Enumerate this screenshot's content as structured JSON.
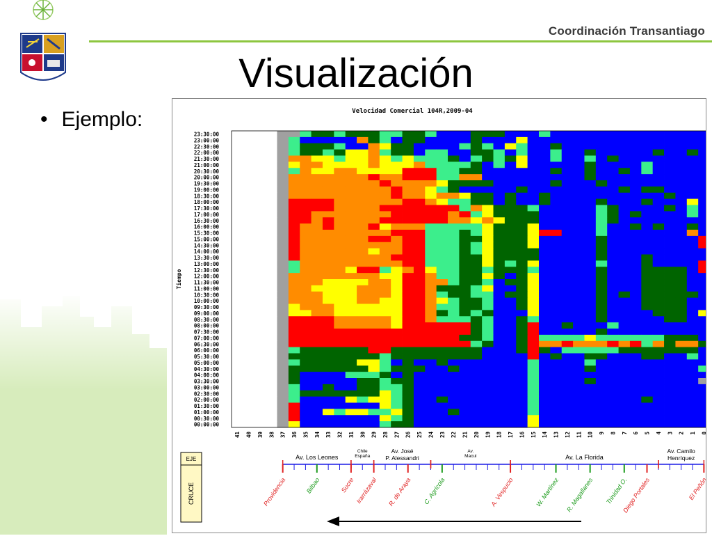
{
  "header": {
    "org_name": "Coordinación Transantiago",
    "accent_color": "#8dc63f"
  },
  "slide": {
    "title": "Visualización",
    "bullet": "Ejemplo:"
  },
  "legend_box": {
    "eje_label": "EJE",
    "cruce_label": "CRUCE"
  },
  "axes_street_segments": [
    {
      "label": "Av. Los Leones",
      "from": "37",
      "to": "31"
    },
    {
      "label": "Chile España",
      "from": "31",
      "to": "29"
    },
    {
      "label": "Av. José P. Alessandri",
      "from": "29",
      "to": "24"
    },
    {
      "label": "Av. Macul",
      "from": "24",
      "to": "17"
    },
    {
      "label": "Av. La Florida",
      "from": "17",
      "to": "4"
    },
    {
      "label": "Av. Camilo Henríquez",
      "from": "4",
      "to": "0"
    }
  ],
  "cross_streets": [
    {
      "name": "Providencia",
      "color": "#e02020",
      "at": "37"
    },
    {
      "name": "Bilbao",
      "color": "#1a9a1a",
      "at": "34"
    },
    {
      "name": "Sucre",
      "color": "#e02020",
      "at": "31"
    },
    {
      "name": "Irarrázaval",
      "color": "#e02020",
      "at": "29"
    },
    {
      "name": "R. de Araya",
      "color": "#e02020",
      "at": "26"
    },
    {
      "name": "C. Agrícola",
      "color": "#1a9a1a",
      "at": "23"
    },
    {
      "name": "A. Vespucio",
      "color": "#e02020",
      "at": "17"
    },
    {
      "name": "W. Martínez",
      "color": "#1a9a1a",
      "at": "13"
    },
    {
      "name": "R. Magallanes",
      "color": "#1a9a1a",
      "at": "10"
    },
    {
      "name": "Trinidad O.",
      "color": "#1a9a1a",
      "at": "7"
    },
    {
      "name": "Diego Portales",
      "color": "#e02020",
      "at": "5"
    },
    {
      "name": "El Peñón",
      "color": "#e02020",
      "at": "0"
    }
  ],
  "chart_data": {
    "type": "heatmap",
    "title": "Velocidad Comercial 104R,2009-04",
    "ylabel": "Tiempo",
    "xlabel": "",
    "x": [
      "41",
      "40",
      "39",
      "38",
      "37",
      "36",
      "35",
      "34",
      "33",
      "32",
      "31",
      "30",
      "29",
      "28",
      "27",
      "26",
      "25",
      "24",
      "23",
      "22",
      "21",
      "20",
      "19",
      "18",
      "17",
      "16",
      "15",
      "14",
      "13",
      "12",
      "11",
      "10",
      "9",
      "8",
      "7",
      "6",
      "5",
      "4",
      "3",
      "2",
      "1",
      "0"
    ],
    "y": [
      "00:00:00",
      "00:30:00",
      "01:00:00",
      "01:30:00",
      "02:00:00",
      "02:30:00",
      "03:00:00",
      "03:30:00",
      "04:00:00",
      "04:30:00",
      "05:00:00",
      "05:30:00",
      "06:00:00",
      "06:30:00",
      "07:00:00",
      "07:30:00",
      "08:00:00",
      "08:30:00",
      "09:00:00",
      "09:30:00",
      "10:00:00",
      "10:30:00",
      "11:00:00",
      "11:30:00",
      "12:00:00",
      "12:30:00",
      "13:00:00",
      "13:30:00",
      "14:00:00",
      "14:30:00",
      "15:00:00",
      "15:30:00",
      "16:00:00",
      "16:30:00",
      "17:00:00",
      "17:30:00",
      "18:00:00",
      "18:30:00",
      "19:00:00",
      "19:30:00",
      "20:00:00",
      "20:30:00",
      "21:00:00",
      "21:30:00",
      "22:00:00",
      "22:30:00",
      "23:00:00",
      "23:30:00"
    ],
    "category_colors": {
      "B": "#0000ff",
      "D": "#006400",
      "L": "#3cee8c",
      "Y": "#ffff00",
      "O": "#ff8c00",
      "R": "#ff0000",
      "G": "#a0a0a0",
      "W": "#ffffff"
    },
    "rows_top_to_bottom": [
      "WWWWGGLDDLDDDLLDDLBBBDDDBBBLBBBBBBBBBBBBBB",
      "WWWWGLBBBBBODLBDDBBBBDBBBYBBBBBBBBBBBBBBBB",
      "WWWWGLDDDLBBOYDDBBBBLDLBYLBBDBBBBBBBBBBBBB",
      "WWWWGLDDLDYYOLDDBLLBBDDLBLBBLBBDBBBBBDBBDB",
      "WWWWGOOYYLYYOYLYLLLDBLDLDYBBLBBLBDBBBBBBBB",
      "WWWWGYOOYYYYOYYYOLLLLDBLBYBBBBBDBBBBLBBBBB",
      "WWWWGLOYYOOYYYYRRRLLDDBBBBBBDBBDBBDBLBBBBB",
      "WWWWGOOOOOOOROORRRLLOOBBBBBBBBBDBBBBBBBBBB",
      "WWWWGOOOOOOOOROOOOYDDDDBBBBBDBBBDBBBBBBBBB",
      "WWWWGOOOOOOOOOROOYLDBBBBBDBBBBBBBBDBDDBBBB",
      "WWWWGOOOOOOOOOROOYOOYDDBDBBDBBBBBBBBBBDBBB",
      "WWWWGRRRROOOOOORROYLLDDBDBBDBBBBDBBBDBBBYB",
      "WWWWGRRRROOOORRRRRRRLOYDDDLBBBBBLDBBBBDBLB",
      "WWWWGRROOOOOOORRRRRORLYDDDDBBBBBLDBDBBBBLB",
      "WWWWGRROROOOORRRRRROOYOYDDDBBBBBLDBBBBBBBB",
      "WWWWGROOROOORYOOOLLLLLYDDDYBBBBBLBBDBDBBDB",
      "WWWWGROOOOOOOORRRLLLDLYDDDYRRBBBLBBBBBBBOB",
      "WWWWGROOOOOORRORRLLLDDYDDDYBBBBBDBBBBBBBBR",
      "WWWWGROOOOOOOOORRLLLDLYDDDYBBBBBDBBBBBBBBR",
      "WWWWGROOOOOOYOORRLLLDLYDDDDBBBBBDBBBBBBBBB",
      "WWWWGROOOOOOOORRRLLLDDYDDDDBBBBBDBBBDBBBBB",
      "WWWWGLOOOOOOOOORRLLLDDYDLDYBBBBBLBBBDBBBBR",
      "WWWWGLOOOOYRRLYORYLLDDLDDDLBBBBBDBBBDDDDBR",
      "WWWWGOOOOOOOOYYRROLLDDYDBDYBBBBBDBBBDDDDBB",
      "WWWWGOOOYYYYOOYRROOLDDLBDDYBBBBBDBBBDDDDBB",
      "WWWWGOOYYYYOOOYRRODDDLYBBDYBBBBBDBBBDDDDBB",
      "WWWWGOOOYYYOOOYRROLDDLLBDDYBBBBBDBDBDDDDDB",
      "WWWWGOOOYYYOOYYRROYLDDLBBDYBBBBBDBBBDDDDBB",
      "WWWWGYOOOYYYYYYRROLLDDLBBDYBBBBBDBBBDDDDBB",
      "WWWWGYYOOYYYYYYRRODLDLDBBBYBBBBBDBBBBDDDBY",
      "WWWWGRRRROOOOOYRROLLLDLBBDLBBBBBDBBBBBDDBB",
      "WWWWGRRRROOOOOYRRRRRRDLBBDRBBDBBBLBBBBBBBB",
      "WWWWGRRRRRRRRRRRRRRRRDLBBDRBBBBBDBBBBBBBBB",
      "WWWWGRRRRRRRRRRRRRRRDDLBBDRLLLLYLLLLLLDDDB",
      "WWWWGRRRRRRRRRRRRRRRRLDBBDROOROOORORLODOOD",
      "WWWWGLDDDDDDRRDDDDDDDDBBBDRDBLLLLLDDDDDDDB",
      "WWWWGDDDDDDDDLDDDDDDDDBBBBRBDBBDDBBBDDBBLB",
      "WWWWGLDDDDDYYLBDBBDBBBBBBBLBBBBLBBBBBBBBBB",
      "WWWWGDDDDDDDYLDDDBBDBBBBBBLBBBBDBBBBBBBBBL",
      "WWWWGDBBBBLLLDBDBBBBBBBBBBLBBBBBBBBBBBBBBB",
      "WWWWGDBBBBBDDLDDBBBBBBBBBBLBBBBDBBBBBBBBBG",
      "WWWWGLBBDBBDDLLDBBBBBBBBBBLBBBBBBBBBBBBBBB",
      "WWWWGLDDDDDDDYLDBBBBBBBBBBLBBBBBBBBBBBBBBB",
      "WWWWGLBBBBYLYYLDBBDBBBBBBBLBBBBBBBBBDBBBBB",
      "WWWWGRBBBBBBBYLDBBBBBBBBBBLBBBBBBBBBBBBBBB",
      "WWWWGRBBYLYYLLYDBBBDBBBBBBLBBBBBBBBBBBBBBB",
      "WWWWGRBBBBBBBYLDBBBBBBBBBBYBBBBBBBBBBBBBBB",
      "WWWWGYBBBBBBBLDDBBBBBBBBBBYBBBBBBBBBBBBBBB"
    ]
  }
}
